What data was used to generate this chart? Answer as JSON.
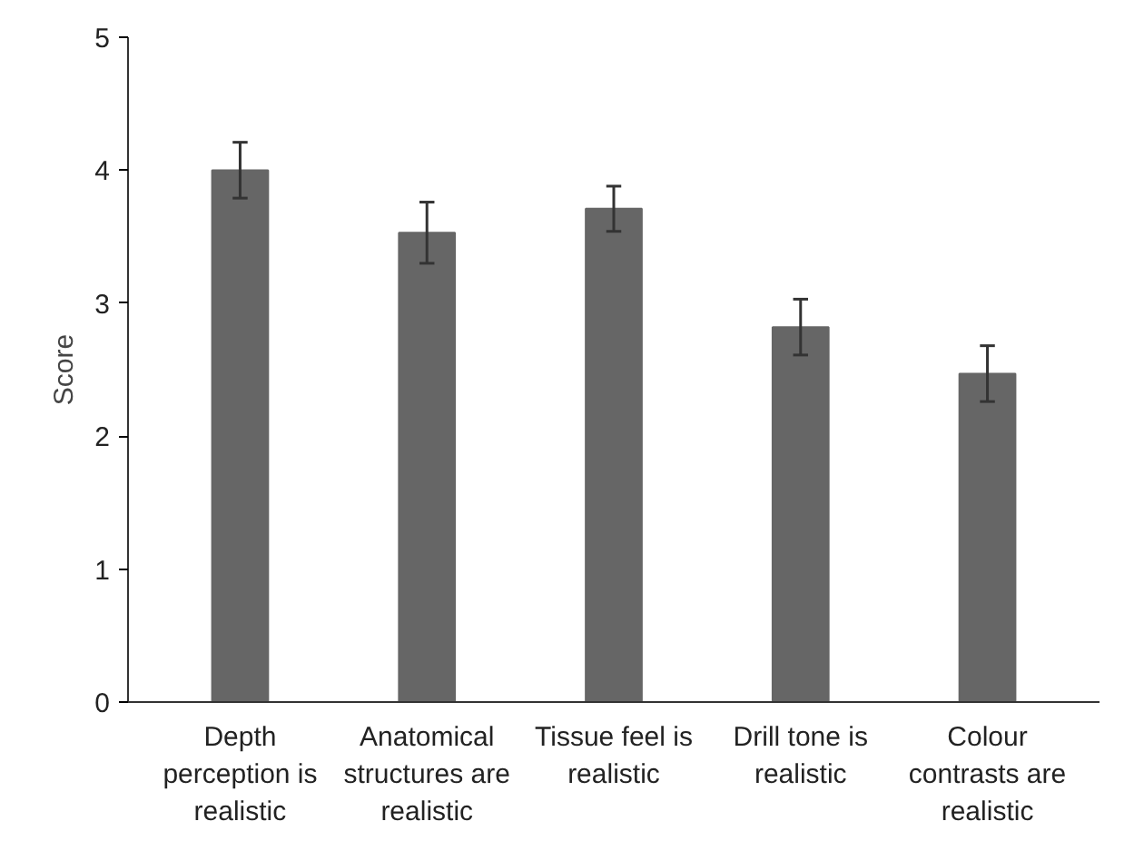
{
  "chart_data": {
    "type": "bar",
    "ylabel": "Score",
    "categories": [
      "Depth perception is realistic",
      "Anatomical structures are realistic",
      "Tissue feel is realistic",
      "Drill tone is realistic",
      "Colour contrasts are realistic"
    ],
    "values": [
      4.0,
      3.53,
      3.71,
      2.82,
      2.47
    ],
    "errors": [
      0.21,
      0.23,
      0.17,
      0.21,
      0.21
    ],
    "color": "#666666",
    "ylim": [
      0,
      5
    ],
    "yticks": [
      0,
      1,
      2,
      3,
      4,
      5
    ],
    "grid": false
  }
}
